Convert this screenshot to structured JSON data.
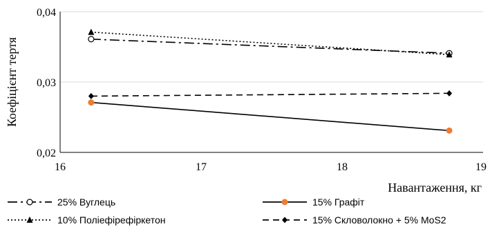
{
  "chart_data": {
    "type": "line",
    "title": "",
    "xlabel": "Навантаження, кг",
    "ylabel": "Коефіцієнт тертя",
    "xlim": [
      16,
      19
    ],
    "ylim": [
      0.02,
      0.04
    ],
    "x_ticks": [
      16,
      17,
      18,
      19
    ],
    "x_tick_labels": [
      "16",
      "17",
      "18",
      "19"
    ],
    "y_ticks": [
      0.02,
      0.03,
      0.04
    ],
    "y_tick_labels": [
      "0,02",
      "0,03",
      "0,04"
    ],
    "grid": "horizontal",
    "legend_position": "bottom",
    "series": [
      {
        "name": "25% Вуглець",
        "x": [
          16.22,
          18.76
        ],
        "values": [
          0.0361,
          0.0341
        ],
        "color": "#000000",
        "line": "dash-dot",
        "marker": "open-circle"
      },
      {
        "name": "15% Графіт",
        "x": [
          16.22,
          18.76
        ],
        "values": [
          0.0271,
          0.0231
        ],
        "color": "#000000",
        "line": "solid",
        "marker": "filled-circle",
        "marker_color": "#ED7D31"
      },
      {
        "name": "10% Поліефірефіркетон",
        "x": [
          16.22,
          18.76
        ],
        "values": [
          0.0371,
          0.0339
        ],
        "color": "#000000",
        "line": "dotted",
        "marker": "triangle"
      },
      {
        "name": "15% Скловолокно + 5% MoS2",
        "x": [
          16.22,
          18.76
        ],
        "values": [
          0.028,
          0.0284
        ],
        "color": "#000000",
        "line": "dashed",
        "marker": "diamond"
      }
    ]
  }
}
